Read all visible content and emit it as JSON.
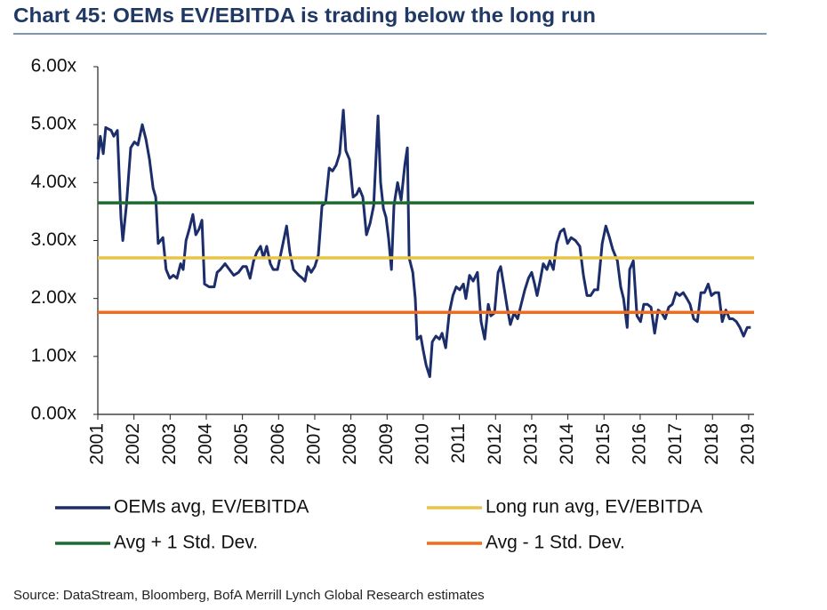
{
  "chart_data": {
    "type": "line",
    "title": "Chart 45: OEMs EV/EBITDA is trading below the long run",
    "source": "Source:  DataStream, Bloomberg, BofA Merrill Lynch Global Research estimates",
    "xlim": [
      2001,
      2019.15
    ],
    "xticks": [
      2001,
      2002,
      2003,
      2004,
      2005,
      2006,
      2007,
      2008,
      2009,
      2010,
      2011,
      2012,
      2013,
      2014,
      2015,
      2016,
      2017,
      2018,
      2019
    ],
    "ylim": [
      0,
      6
    ],
    "yticks": [
      {
        "value": 0,
        "label": "0.00x"
      },
      {
        "value": 1,
        "label": "1.00x"
      },
      {
        "value": 2,
        "label": "2.00x"
      },
      {
        "value": 3,
        "label": "3.00x"
      },
      {
        "value": 4,
        "label": "4.00x"
      },
      {
        "value": 5,
        "label": "5.00x"
      },
      {
        "value": 6,
        "label": "6.00x"
      }
    ],
    "grid": false,
    "series": [
      {
        "name": "OEMs avg, EV/EBITDA",
        "color": "#1b2d6b",
        "x": [
          2001.0,
          2001.07,
          2001.15,
          2001.22,
          2001.37,
          2001.44,
          2001.54,
          2001.64,
          2001.69,
          2001.79,
          2001.91,
          2002.01,
          2002.11,
          2002.23,
          2002.33,
          2002.43,
          2002.53,
          2002.6,
          2002.67,
          2002.8,
          2002.89,
          2002.99,
          2003.09,
          2003.19,
          2003.29,
          2003.36,
          2003.44,
          2003.53,
          2003.63,
          2003.71,
          2003.8,
          2003.88,
          2003.95,
          2004.08,
          2004.22,
          2004.3,
          2004.39,
          2004.52,
          2004.64,
          2004.76,
          2004.89,
          2005.01,
          2005.11,
          2005.21,
          2005.31,
          2005.4,
          2005.5,
          2005.58,
          2005.67,
          2005.77,
          2005.85,
          2005.97,
          2006.07,
          2006.22,
          2006.31,
          2006.41,
          2006.56,
          2006.66,
          2006.73,
          2006.81,
          2006.9,
          2007.0,
          2007.1,
          2007.2,
          2007.3,
          2007.4,
          2007.49,
          2007.59,
          2007.69,
          2007.79,
          2007.86,
          2007.96,
          2008.06,
          2008.16,
          2008.23,
          2008.33,
          2008.43,
          2008.53,
          2008.63,
          2008.75,
          2008.82,
          2008.9,
          2008.97,
          2009.04,
          2009.12,
          2009.19,
          2009.29,
          2009.39,
          2009.49,
          2009.56,
          2009.61,
          2009.71,
          2009.78,
          2009.83,
          2009.93,
          2010.0,
          2010.08,
          2010.18,
          2010.25,
          2010.35,
          2010.45,
          2010.52,
          2010.62,
          2010.72,
          2010.82,
          2010.91,
          2011.01,
          2011.11,
          2011.18,
          2011.28,
          2011.38,
          2011.5,
          2011.6,
          2011.7,
          2011.8,
          2011.87,
          2011.97,
          2012.07,
          2012.14,
          2012.22,
          2012.32,
          2012.41,
          2012.51,
          2012.61,
          2012.71,
          2012.81,
          2012.91,
          2013.0,
          2013.08,
          2013.15,
          2013.23,
          2013.32,
          2013.42,
          2013.5,
          2013.6,
          2013.69,
          2013.79,
          2013.89,
          2013.99,
          2014.09,
          2014.21,
          2014.33,
          2014.43,
          2014.53,
          2014.63,
          2014.73,
          2014.83,
          2014.95,
          2015.05,
          2015.15,
          2015.24,
          2015.37,
          2015.46,
          2015.54,
          2015.64,
          2015.71,
          2015.81,
          2015.91,
          2016.01,
          2016.1,
          2016.2,
          2016.3,
          2016.4,
          2016.5,
          2016.6,
          2016.69,
          2016.79,
          2016.89,
          2016.99,
          2017.09,
          2017.19,
          2017.29,
          2017.38,
          2017.48,
          2017.58,
          2017.68,
          2017.78,
          2017.88,
          2017.97,
          2018.07,
          2018.17,
          2018.27,
          2018.37,
          2018.47,
          2018.56,
          2018.66,
          2018.76,
          2018.86,
          2018.96,
          2019.06
        ],
        "values": [
          4.4,
          4.8,
          4.5,
          4.95,
          4.9,
          4.8,
          4.9,
          3.4,
          3.0,
          3.6,
          4.6,
          4.7,
          4.65,
          5.0,
          4.75,
          4.4,
          3.9,
          3.75,
          2.95,
          3.05,
          2.5,
          2.35,
          2.4,
          2.35,
          2.6,
          2.5,
          3.0,
          3.2,
          3.45,
          3.1,
          3.2,
          3.35,
          2.25,
          2.2,
          2.2,
          2.45,
          2.5,
          2.6,
          2.5,
          2.4,
          2.45,
          2.55,
          2.55,
          2.35,
          2.65,
          2.8,
          2.9,
          2.7,
          2.9,
          2.6,
          2.5,
          2.5,
          2.8,
          3.25,
          2.8,
          2.5,
          2.4,
          2.35,
          2.3,
          2.55,
          2.45,
          2.55,
          2.75,
          3.6,
          3.65,
          4.25,
          4.2,
          4.3,
          4.5,
          5.25,
          4.55,
          4.4,
          3.75,
          3.8,
          3.9,
          3.75,
          3.1,
          3.3,
          3.6,
          5.15,
          4.0,
          3.55,
          3.4,
          3.05,
          2.5,
          3.6,
          4.0,
          3.7,
          4.3,
          4.6,
          2.7,
          2.45,
          2.0,
          1.3,
          1.35,
          1.1,
          0.85,
          0.65,
          1.25,
          1.35,
          1.3,
          1.4,
          1.15,
          1.75,
          2.05,
          2.2,
          2.15,
          2.25,
          2.0,
          2.4,
          2.3,
          2.45,
          1.6,
          1.3,
          1.9,
          1.7,
          1.75,
          2.45,
          2.55,
          2.25,
          1.85,
          1.55,
          1.75,
          1.65,
          1.9,
          2.15,
          2.35,
          2.45,
          2.25,
          2.05,
          2.3,
          2.6,
          2.5,
          2.65,
          2.5,
          2.95,
          3.15,
          3.2,
          2.95,
          3.05,
          3.0,
          2.9,
          2.4,
          2.05,
          2.05,
          2.15,
          2.15,
          2.95,
          3.25,
          3.05,
          2.85,
          2.65,
          2.2,
          2.0,
          1.5,
          2.5,
          2.65,
          1.7,
          1.6,
          1.9,
          1.9,
          1.85,
          1.4,
          1.8,
          1.75,
          1.65,
          1.85,
          1.9,
          2.1,
          2.05,
          2.1,
          2.0,
          1.9,
          1.65,
          1.6,
          2.1,
          2.1,
          2.25,
          2.05,
          2.1,
          2.1,
          1.6,
          1.8,
          1.65,
          1.65,
          1.6,
          1.5,
          1.35,
          1.5,
          1.5
        ]
      },
      {
        "name": "Long run avg, EV/EBITDA",
        "color": "#e8c547",
        "x": [
          2001,
          2019.15
        ],
        "values": [
          2.7,
          2.7
        ]
      },
      {
        "name": "Avg + 1 Std. Dev.",
        "color": "#1e6b32",
        "x": [
          2001,
          2019.15
        ],
        "values": [
          3.65,
          3.65
        ]
      },
      {
        "name": "Avg - 1 Std. Dev.",
        "color": "#f26b1d",
        "x": [
          2001,
          2019.15
        ],
        "values": [
          1.76,
          1.76
        ]
      }
    ]
  }
}
